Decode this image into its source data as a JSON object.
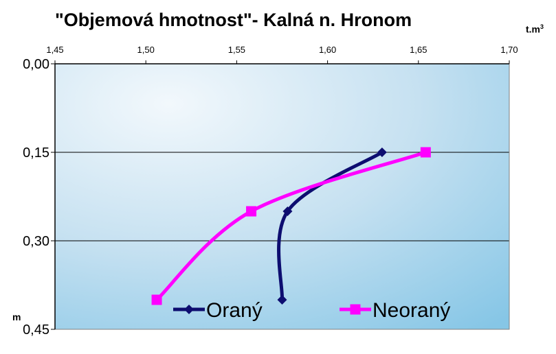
{
  "chart_data": {
    "type": "line",
    "title": "\"Objemová hmotnost\"- Kalná n. Hronom",
    "x_unit_label": "t.m",
    "x_unit_superscript": "3",
    "y_unit_label": "m",
    "xlim": [
      1.45,
      1.7
    ],
    "ylim": [
      0.0,
      0.45
    ],
    "y_inverted": true,
    "x_ticks": [
      "1,45",
      "1,50",
      "1,55",
      "1,60",
      "1,65",
      "1,70"
    ],
    "x_tick_values": [
      1.45,
      1.5,
      1.55,
      1.6,
      1.65,
      1.7
    ],
    "y_ticks": [
      "0,00",
      "0,15",
      "0,30",
      "0,45"
    ],
    "y_tick_values": [
      0.0,
      0.15,
      0.3,
      0.45
    ],
    "x_axis_position": "top",
    "grid": "horizontal",
    "legend_position": "bottom-inside",
    "series": [
      {
        "name": "Oraný",
        "color": "#0d0d70",
        "marker": "diamond",
        "points": [
          {
            "x": 1.63,
            "y": 0.15
          },
          {
            "x": 1.578,
            "y": 0.25
          },
          {
            "x": 1.575,
            "y": 0.4
          }
        ]
      },
      {
        "name": "Neoraný",
        "color": "#ff00ff",
        "marker": "square",
        "points": [
          {
            "x": 1.654,
            "y": 0.15
          },
          {
            "x": 1.558,
            "y": 0.25
          },
          {
            "x": 1.506,
            "y": 0.4
          }
        ]
      }
    ]
  }
}
